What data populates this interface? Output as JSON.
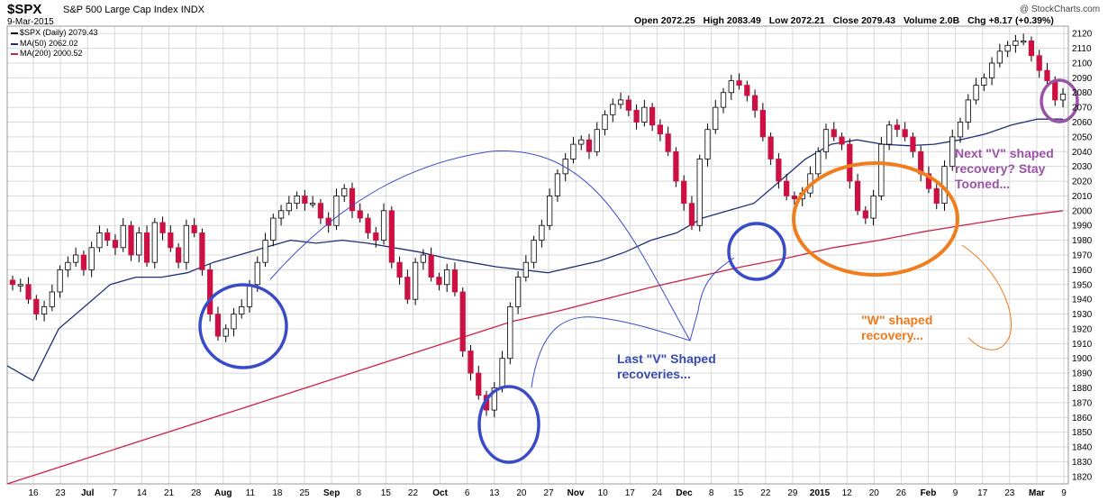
{
  "header": {
    "symbol": "$SPX",
    "name": "S&P 500 Large Cap Index",
    "exchange": "INDX",
    "date": "9-Mar-2015",
    "open": "Open 2072.25",
    "high": "High 2083.49",
    "low": "Low 2072.21",
    "close": "Close 2079.43",
    "volume": "Volume 2.0B",
    "change": "Chg +8.17 (+0.39%)",
    "credit": "@ StockCharts.com"
  },
  "legend": {
    "price": "$SPX (Daily) 2079.43",
    "ma50": "MA(50) 2062.02",
    "ma200": "MA(200) 2000.52"
  },
  "annotations": {
    "v_line1": "Last \"V\" Shaped",
    "v_line2": "recoveries...",
    "w_line1": "\"W\" shaped",
    "w_line2": "recovery...",
    "next_line1": "Next \"V\" shaped",
    "next_line2": "recovery? Stay",
    "next_line3": "Tooned..."
  },
  "colors": {
    "up": "#ffffff",
    "down": "#cc1142",
    "ma50": "#1f2f7a",
    "ma200": "#cc2244",
    "blue_circle": "#3a4bc8",
    "orange": "#f07d1e",
    "purple": "#9b52a6",
    "grid": "#d9d9d9"
  },
  "chart_data": {
    "type": "candlestick",
    "title": "$SPX S&P 500 Large Cap Index",
    "ylim": [
      1815,
      2125
    ],
    "y_ticks": [
      1820,
      1830,
      1840,
      1850,
      1860,
      1870,
      1880,
      1890,
      1900,
      1910,
      1920,
      1930,
      1940,
      1950,
      1960,
      1970,
      1980,
      1990,
      2000,
      2010,
      2020,
      2030,
      2040,
      2050,
      2060,
      2070,
      2080,
      2090,
      2100,
      2110,
      2120
    ],
    "x_tick_labels": [
      "16",
      "23",
      "Jul",
      "7",
      "14",
      "21",
      "28",
      "Aug",
      "11",
      "18",
      "25",
      "Sep",
      "8",
      "15",
      "22",
      "Oct",
      "6",
      "13",
      "20",
      "27",
      "Nov",
      "10",
      "17",
      "24",
      "Dec",
      "8",
      "15",
      "22",
      "29",
      "2015",
      "12",
      "20",
      "26",
      "Feb",
      "9",
      "17",
      "23",
      "Mar",
      "9"
    ],
    "x_tick_bold": [
      "Jul",
      "Aug",
      "Sep",
      "Oct",
      "Nov",
      "Dec",
      "2015",
      "Feb",
      "Mar"
    ],
    "price_points": [
      [
        1950,
        1950
      ],
      [
        1940,
        1930
      ],
      [
        1935,
        1945
      ],
      [
        1960,
        1965
      ],
      [
        1970,
        1960
      ],
      [
        1975,
        1985
      ],
      [
        1980,
        1975
      ],
      [
        1990,
        1970
      ],
      [
        1985,
        1965
      ],
      [
        1992,
        1985
      ],
      [
        1975,
        1965
      ],
      [
        1990,
        1985
      ],
      [
        1960,
        1930
      ],
      [
        1915,
        1920
      ],
      [
        1930,
        1935
      ],
      [
        1950,
        1965
      ],
      [
        1980,
        1995
      ],
      [
        2000,
        2005
      ],
      [
        2010,
        2005
      ],
      [
        2005,
        1995
      ],
      [
        1990,
        2010
      ],
      [
        2015,
        2000
      ],
      [
        1995,
        1985
      ],
      [
        1980,
        2000
      ],
      [
        1965,
        1955
      ],
      [
        1940,
        1965
      ],
      [
        1970,
        1955
      ],
      [
        1950,
        1960
      ],
      [
        1945,
        1905
      ],
      [
        1890,
        1875
      ],
      [
        1865,
        1880
      ],
      [
        1900,
        1935
      ],
      [
        1955,
        1965
      ],
      [
        1980,
        1990
      ],
      [
        2010,
        2025
      ],
      [
        2035,
        2045
      ],
      [
        2048,
        2040
      ],
      [
        2055,
        2065
      ],
      [
        2072,
        2075
      ],
      [
        2068,
        2060
      ],
      [
        2070,
        2058
      ],
      [
        2052,
        2040
      ],
      [
        2020,
        2005
      ],
      [
        1990,
        2035
      ],
      [
        2055,
        2070
      ],
      [
        2080,
        2088
      ],
      [
        2085,
        2078
      ],
      [
        2068,
        2050
      ],
      [
        2035,
        2020
      ],
      [
        2010,
        2008
      ],
      [
        2012,
        2025
      ],
      [
        2040,
        2055
      ],
      [
        2050,
        2045
      ],
      [
        2020,
        2000
      ],
      [
        1995,
        2010
      ],
      [
        2045,
        2058
      ],
      [
        2055,
        2050
      ],
      [
        2040,
        2025
      ],
      [
        2015,
        2005
      ],
      [
        2030,
        2050
      ],
      [
        2060,
        2075
      ],
      [
        2085,
        2090
      ],
      [
        2100,
        2108
      ],
      [
        2112,
        2115
      ],
      [
        2115,
        2105
      ],
      [
        2095,
        2088
      ],
      [
        2075,
        2079
      ]
    ],
    "ma50_points": [
      [
        1895,
        1885
      ],
      [
        1920,
        1935
      ],
      [
        1950,
        1955
      ],
      [
        1955,
        1958
      ],
      [
        1965,
        1970
      ],
      [
        1975,
        1980
      ],
      [
        1978,
        1980
      ],
      [
        1978,
        1975
      ],
      [
        1972,
        1968
      ],
      [
        1965,
        1962
      ],
      [
        1960,
        1958
      ],
      [
        1962,
        1966
      ],
      [
        1972,
        1980
      ],
      [
        1985,
        1995
      ],
      [
        2000,
        2005
      ],
      [
        2020,
        2035
      ],
      [
        2045,
        2048
      ],
      [
        2045,
        2044
      ],
      [
        2045,
        2048
      ],
      [
        2052,
        2058
      ],
      [
        2062,
        2062
      ]
    ],
    "ma200_points": [
      [
        1815,
        1825
      ],
      [
        1835,
        1845
      ],
      [
        1855,
        1865
      ],
      [
        1875,
        1885
      ],
      [
        1895,
        1905
      ],
      [
        1915,
        1925
      ],
      [
        1932,
        1940
      ],
      [
        1948,
        1955
      ],
      [
        1962,
        1968
      ],
      [
        1975,
        1980
      ],
      [
        1986,
        1991
      ],
      [
        1996,
        2000
      ]
    ],
    "notes": "Daily candles from mid-June 2014 to 9-Mar-2015 with 50-day and 200-day moving averages; circled V-shaped bottoms early Aug, mid Oct, mid Dec; W-shaped recovery Jan-Feb."
  }
}
